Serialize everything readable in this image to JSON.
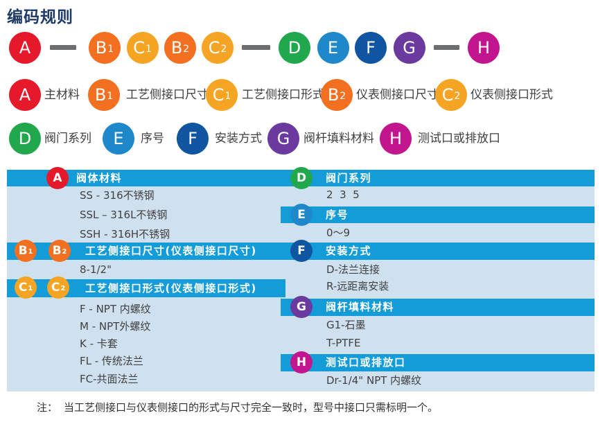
{
  "title": "编码规则",
  "palette": {
    "strip_blue": "#149cd8",
    "table_bg": "#cfe0ee",
    "dash_gray": "#6d6e71",
    "title_navy": "#1e3a68",
    "A_red": "#e6192a",
    "B_orange": "#f37021",
    "C_amber": "#f6a423",
    "D_green": "#22a84c",
    "E_blue": "#1e88cb",
    "F_darkblue": "#10559f",
    "G_purple": "#6a3a9e",
    "H_magenta": "#c2168f"
  },
  "chain": {
    "nodes": [
      {
        "code": "A",
        "sub": "",
        "color": "#e6192a"
      },
      {
        "code": "B",
        "sub": "1",
        "color": "#f37021"
      },
      {
        "code": "C",
        "sub": "1",
        "color": "#f6a423"
      },
      {
        "code": "B",
        "sub": "2",
        "color": "#f37021"
      },
      {
        "code": "C",
        "sub": "2",
        "color": "#f6a423"
      },
      {
        "code": "D",
        "sub": "",
        "color": "#22a84c"
      },
      {
        "code": "E",
        "sub": "",
        "color": "#1e88cb"
      },
      {
        "code": "F",
        "sub": "",
        "color": "#10559f"
      },
      {
        "code": "G",
        "sub": "",
        "color": "#6a3a9e"
      },
      {
        "code": "H",
        "sub": "",
        "color": "#c2168f"
      }
    ]
  },
  "legend": {
    "row1": [
      {
        "code": "A",
        "sub": "",
        "color": "#e6192a",
        "label": "主材料"
      },
      {
        "code": "B",
        "sub": "1",
        "color": "#f37021",
        "label": "工艺侧接口尺寸"
      },
      {
        "code": "C",
        "sub": "1",
        "color": "#f6a423",
        "label": "工艺侧接口形式"
      },
      {
        "code": "B",
        "sub": "2",
        "color": "#f37021",
        "label": "仪表侧接口尺寸"
      },
      {
        "code": "C",
        "sub": "2",
        "color": "#f6a423",
        "label": "仪表侧接口形式"
      }
    ],
    "row2": [
      {
        "code": "D",
        "sub": "",
        "color": "#22a84c",
        "label": "阀门系列"
      },
      {
        "code": "E",
        "sub": "",
        "color": "#1e88cb",
        "label": "序号"
      },
      {
        "code": "F",
        "sub": "",
        "color": "#10559f",
        "label": "安装方式"
      },
      {
        "code": "G",
        "sub": "",
        "color": "#6a3a9e",
        "label": "阀杆填料材料"
      },
      {
        "code": "H",
        "sub": "",
        "color": "#c2168f",
        "label": "测试口或排放口"
      }
    ]
  },
  "table": {
    "left": [
      {
        "badges": [
          {
            "code": "A",
            "sub": "",
            "color": "#e6192a"
          }
        ],
        "header": "阀体材料",
        "items": [
          "SS - 316不锈钢",
          "SSL – 316L不锈钢",
          "SSH - 316H不锈钢"
        ]
      },
      {
        "badges": [
          {
            "code": "B",
            "sub": "1",
            "color": "#f37021"
          },
          {
            "code": "B",
            "sub": "2",
            "color": "#f37021"
          }
        ],
        "header": "工艺侧接口尺寸(仪表侧接口尺寸)",
        "items": [
          "8-1/2\""
        ]
      },
      {
        "badges": [
          {
            "code": "C",
            "sub": "1",
            "color": "#f6a423"
          },
          {
            "code": "C",
            "sub": "2",
            "color": "#f6a423"
          }
        ],
        "header": "工艺侧接口形式(仪表侧接口形式)",
        "items": [
          "F - NPT 内螺纹",
          "M - NPT外螺纹",
          "K - 卡套",
          "FL - 传统法兰",
          "FC-共面法兰"
        ]
      }
    ],
    "right": [
      {
        "badges": [
          {
            "code": "D",
            "sub": "",
            "color": "#22a84c"
          }
        ],
        "header": "阀门系列",
        "items": [
          "2  3  5"
        ]
      },
      {
        "badges": [
          {
            "code": "E",
            "sub": "",
            "color": "#1e88cb"
          }
        ],
        "header": "序号",
        "items": [
          "0～9"
        ]
      },
      {
        "badges": [
          {
            "code": "F",
            "sub": "",
            "color": "#10559f"
          }
        ],
        "header": "安装方式",
        "items": [
          "D-法兰连接",
          "R-远距离安装"
        ]
      },
      {
        "badges": [
          {
            "code": "G",
            "sub": "",
            "color": "#6a3a9e"
          }
        ],
        "header": "阀杆填料材料",
        "items": [
          "G1-石墨",
          "T-PTFE"
        ]
      },
      {
        "badges": [
          {
            "code": "H",
            "sub": "",
            "color": "#c2168f"
          }
        ],
        "header": "测试口或排放口",
        "items": [
          "Dr-1/4\" NPT 内螺纹"
        ]
      }
    ]
  },
  "note": {
    "prefix": "注：",
    "text": "当工艺侧接口与仪表侧接口的形式与尺寸完全一致时，型号中接口只需标明一个。"
  }
}
